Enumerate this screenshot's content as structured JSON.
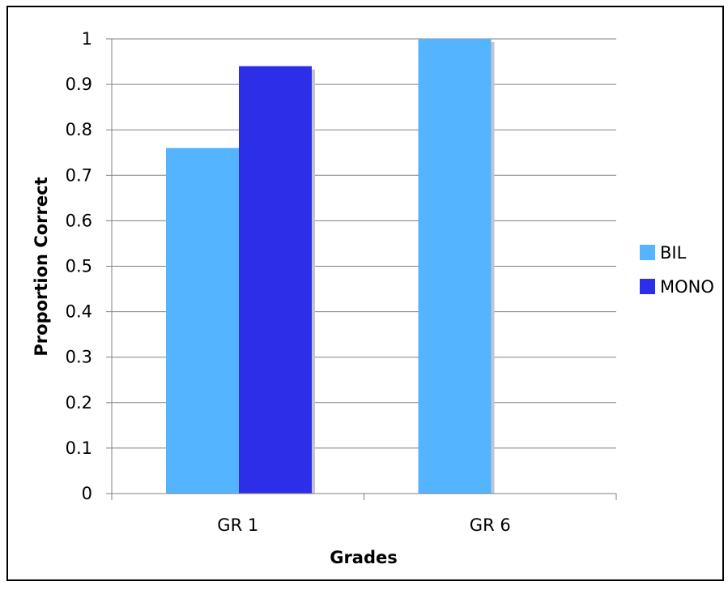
{
  "chart_data": {
    "type": "bar",
    "title": "",
    "xlabel": "Grades",
    "ylabel": "Proportion Correct",
    "categories": [
      "GR 1",
      "GR 6"
    ],
    "series": [
      {
        "name": "BIL",
        "values": [
          0.76,
          1.0
        ],
        "color": "#55b4ff"
      },
      {
        "name": "MONO",
        "values": [
          0.94,
          0
        ],
        "color": "#2c2ee8"
      }
    ],
    "ylim": [
      0,
      1
    ],
    "yticks": [
      "0",
      "0.1",
      "0.2",
      "0.3",
      "0.4",
      "0.5",
      "0.6",
      "0.7",
      "0.8",
      "0.9",
      "1"
    ],
    "grid": true,
    "legend": "right",
    "shadow_color": "#c0c6d0"
  }
}
